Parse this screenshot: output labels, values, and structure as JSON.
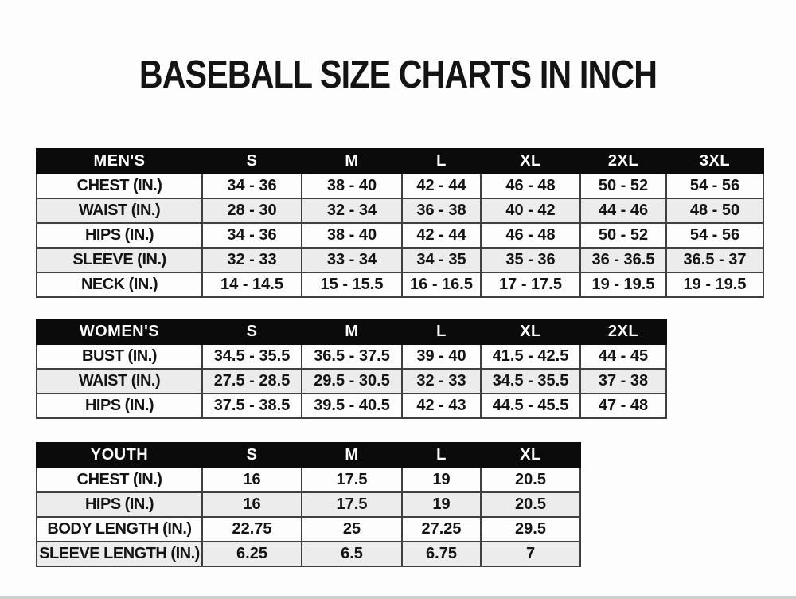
{
  "page": {
    "title": "BASEBALL SIZE CHARTS IN INCH"
  },
  "colors": {
    "header_bg": "#0b0b0b",
    "header_text": "#ffffff",
    "row_white": "#fdfdfd",
    "row_gray": "#ececec",
    "border": "#3f3f3f",
    "text": "#141414",
    "bottom_strip": "#cfcfcf"
  },
  "tables": [
    {
      "id": "mens",
      "header": [
        "MEN'S",
        "S",
        "M",
        "L",
        "XL",
        "2XL",
        "3XL"
      ],
      "rows": [
        {
          "label": "CHEST (IN.)",
          "values": [
            "34 - 36",
            "38 - 40",
            "42 - 44",
            "46 - 48",
            "50 - 52",
            "54 - 56"
          ]
        },
        {
          "label": "WAIST (IN.)",
          "values": [
            "28 - 30",
            "32 - 34",
            "36 - 38",
            "40 - 42",
            "44 - 46",
            "48 - 50"
          ]
        },
        {
          "label": "HIPS (IN.)",
          "values": [
            "34 - 36",
            "38 - 40",
            "42 - 44",
            "46 - 48",
            "50 - 52",
            "54 - 56"
          ]
        },
        {
          "label": "SLEEVE (IN.)",
          "values": [
            "32 - 33",
            "33 - 34",
            "34 - 35",
            "35 - 36",
            "36 - 36.5",
            "36.5 - 37"
          ]
        },
        {
          "label": "NECK (IN.)",
          "values": [
            "14 - 14.5",
            "15 - 15.5",
            "16 - 16.5",
            "17 - 17.5",
            "19 - 19.5",
            "19 - 19.5"
          ]
        }
      ]
    },
    {
      "id": "womens",
      "header": [
        "WOMEN'S",
        "S",
        "M",
        "L",
        "XL",
        "2XL"
      ],
      "rows": [
        {
          "label": "BUST (IN.)",
          "values": [
            "34.5 - 35.5",
            "36.5 - 37.5",
            "39 - 40",
            "41.5 - 42.5",
            "44 - 45"
          ]
        },
        {
          "label": "WAIST (IN.)",
          "values": [
            "27.5 - 28.5",
            "29.5 - 30.5",
            "32 - 33",
            "34.5 - 35.5",
            "37 - 38"
          ]
        },
        {
          "label": "HIPS (IN.)",
          "values": [
            "37.5 - 38.5",
            "39.5 - 40.5",
            "42 - 43",
            "44.5 - 45.5",
            "47 - 48"
          ]
        }
      ]
    },
    {
      "id": "youth",
      "header": [
        "YOUTH",
        "S",
        "M",
        "L",
        "XL"
      ],
      "rows": [
        {
          "label": "CHEST (IN.)",
          "values": [
            "16",
            "17.5",
            "19",
            "20.5"
          ]
        },
        {
          "label": "HIPS (IN.)",
          "values": [
            "16",
            "17.5",
            "19",
            "20.5"
          ]
        },
        {
          "label": "BODY LENGTH (IN.)",
          "values": [
            "22.75",
            "25",
            "27.25",
            "29.5"
          ]
        },
        {
          "label": "SLEEVE LENGTH (IN.)",
          "values": [
            "6.25",
            "6.5",
            "6.75",
            "7"
          ]
        }
      ]
    }
  ]
}
